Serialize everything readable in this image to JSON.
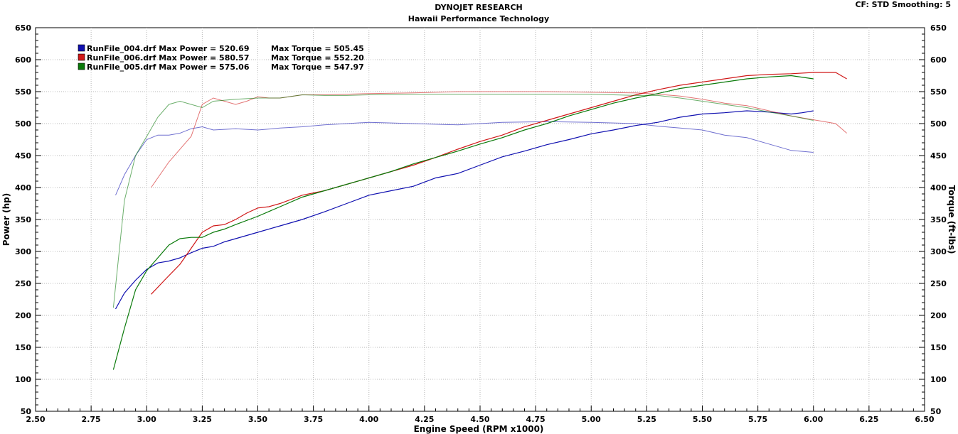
{
  "header": {
    "title": "DYNOJET RESEARCH",
    "subtitle": "Hawaii Performance Technology",
    "info": "CF: STD  Smoothing: 5"
  },
  "chart_data": {
    "type": "line",
    "title": "DYNOJET RESEARCH",
    "subtitle": "Hawaii Performance Technology",
    "xlabel": "Engine Speed (RPM x1000)",
    "ylabel": "Power (hp)",
    "y2label": "Torque (ft-lbs)",
    "xlim": [
      2.5,
      6.5
    ],
    "ylim": [
      50,
      650
    ],
    "y2lim": [
      50,
      650
    ],
    "x_ticks": [
      "2.50",
      "2.75",
      "3.00",
      "3.25",
      "3.50",
      "3.75",
      "4.00",
      "4.25",
      "4.50",
      "4.75",
      "5.00",
      "5.25",
      "5.50",
      "5.75",
      "6.00",
      "6.25",
      "6.50"
    ],
    "y_ticks": [
      "50",
      "100",
      "150",
      "200",
      "250",
      "300",
      "350",
      "400",
      "450",
      "500",
      "550",
      "600",
      "650"
    ],
    "grid": true,
    "legend_position": "top-left",
    "colors": {
      "RunFile_004.drf": "#1010b0",
      "RunFile_006.drf": "#d01818",
      "RunFile_005.drf": "#0a7a0a"
    },
    "legend": [
      {
        "name": "RunFile_004.drf",
        "text": "RunFile_004.drf Max Power = 520.69",
        "torque_text": "Max Torque = 505.45",
        "color": "#1010b0"
      },
      {
        "name": "RunFile_006.drf",
        "text": "RunFile_006.drf Max Power = 580.57",
        "torque_text": "Max Torque = 552.20",
        "color": "#d01818"
      },
      {
        "name": "RunFile_005.drf",
        "text": "RunFile_005.drf Max Power = 575.06",
        "torque_text": "Max Torque = 547.97",
        "color": "#0a7a0a"
      }
    ],
    "series": [
      {
        "name": "RunFile_004.drf",
        "kind": "power",
        "color": "#1010b0",
        "points": [
          [
            2.86,
            210
          ],
          [
            2.9,
            235
          ],
          [
            2.95,
            255
          ],
          [
            3.0,
            272
          ],
          [
            3.05,
            282
          ],
          [
            3.1,
            285
          ],
          [
            3.15,
            290
          ],
          [
            3.2,
            298
          ],
          [
            3.25,
            305
          ],
          [
            3.3,
            308
          ],
          [
            3.35,
            315
          ],
          [
            3.4,
            320
          ],
          [
            3.5,
            330
          ],
          [
            3.6,
            340
          ],
          [
            3.7,
            350
          ],
          [
            3.8,
            362
          ],
          [
            3.9,
            375
          ],
          [
            4.0,
            388
          ],
          [
            4.1,
            395
          ],
          [
            4.2,
            402
          ],
          [
            4.3,
            415
          ],
          [
            4.4,
            422
          ],
          [
            4.5,
            435
          ],
          [
            4.6,
            448
          ],
          [
            4.7,
            457
          ],
          [
            4.8,
            467
          ],
          [
            4.9,
            475
          ],
          [
            5.0,
            484
          ],
          [
            5.1,
            490
          ],
          [
            5.2,
            497
          ],
          [
            5.3,
            502
          ],
          [
            5.4,
            510
          ],
          [
            5.5,
            515
          ],
          [
            5.6,
            517
          ],
          [
            5.7,
            520
          ],
          [
            5.8,
            518
          ],
          [
            5.9,
            515
          ],
          [
            5.95,
            517
          ],
          [
            6.0,
            520
          ]
        ]
      },
      {
        "name": "RunFile_004.drf",
        "kind": "torque",
        "color": "#1010b0",
        "points": [
          [
            2.86,
            388
          ],
          [
            2.9,
            420
          ],
          [
            2.95,
            450
          ],
          [
            3.0,
            475
          ],
          [
            3.05,
            482
          ],
          [
            3.1,
            482
          ],
          [
            3.15,
            485
          ],
          [
            3.2,
            492
          ],
          [
            3.25,
            495
          ],
          [
            3.3,
            490
          ],
          [
            3.4,
            492
          ],
          [
            3.5,
            490
          ],
          [
            3.6,
            493
          ],
          [
            3.7,
            495
          ],
          [
            3.8,
            498
          ],
          [
            3.9,
            500
          ],
          [
            4.0,
            502
          ],
          [
            4.2,
            500
          ],
          [
            4.4,
            498
          ],
          [
            4.6,
            502
          ],
          [
            4.8,
            503
          ],
          [
            5.0,
            502
          ],
          [
            5.2,
            500
          ],
          [
            5.3,
            496
          ],
          [
            5.4,
            493
          ],
          [
            5.5,
            490
          ],
          [
            5.6,
            482
          ],
          [
            5.7,
            478
          ],
          [
            5.8,
            468
          ],
          [
            5.9,
            458
          ],
          [
            6.0,
            455
          ]
        ]
      },
      {
        "name": "RunFile_006.drf",
        "kind": "power",
        "color": "#d01818",
        "points": [
          [
            3.02,
            233
          ],
          [
            3.08,
            255
          ],
          [
            3.15,
            280
          ],
          [
            3.2,
            305
          ],
          [
            3.25,
            330
          ],
          [
            3.3,
            340
          ],
          [
            3.35,
            342
          ],
          [
            3.4,
            350
          ],
          [
            3.45,
            360
          ],
          [
            3.5,
            368
          ],
          [
            3.55,
            370
          ],
          [
            3.6,
            375
          ],
          [
            3.7,
            388
          ],
          [
            3.8,
            395
          ],
          [
            3.9,
            405
          ],
          [
            4.0,
            415
          ],
          [
            4.1,
            425
          ],
          [
            4.2,
            435
          ],
          [
            4.3,
            447
          ],
          [
            4.4,
            460
          ],
          [
            4.5,
            472
          ],
          [
            4.6,
            482
          ],
          [
            4.7,
            495
          ],
          [
            4.8,
            505
          ],
          [
            4.9,
            515
          ],
          [
            5.0,
            525
          ],
          [
            5.1,
            535
          ],
          [
            5.2,
            545
          ],
          [
            5.3,
            553
          ],
          [
            5.4,
            560
          ],
          [
            5.5,
            565
          ],
          [
            5.6,
            570
          ],
          [
            5.7,
            575
          ],
          [
            5.8,
            577
          ],
          [
            5.9,
            578
          ],
          [
            6.0,
            580
          ],
          [
            6.1,
            580
          ],
          [
            6.15,
            570
          ]
        ]
      },
      {
        "name": "RunFile_006.drf",
        "kind": "torque",
        "color": "#d01818",
        "points": [
          [
            3.02,
            400
          ],
          [
            3.1,
            440
          ],
          [
            3.2,
            480
          ],
          [
            3.25,
            530
          ],
          [
            3.3,
            540
          ],
          [
            3.35,
            535
          ],
          [
            3.4,
            530
          ],
          [
            3.45,
            535
          ],
          [
            3.5,
            542
          ],
          [
            3.55,
            540
          ],
          [
            3.6,
            540
          ],
          [
            3.7,
            545
          ],
          [
            3.8,
            545
          ],
          [
            3.9,
            546
          ],
          [
            4.0,
            547
          ],
          [
            4.2,
            548
          ],
          [
            4.4,
            550
          ],
          [
            4.6,
            550
          ],
          [
            4.8,
            550
          ],
          [
            5.0,
            549
          ],
          [
            5.2,
            548
          ],
          [
            5.3,
            546
          ],
          [
            5.4,
            543
          ],
          [
            5.5,
            538
          ],
          [
            5.6,
            532
          ],
          [
            5.7,
            528
          ],
          [
            5.8,
            520
          ],
          [
            5.9,
            512
          ],
          [
            6.0,
            506
          ],
          [
            6.1,
            500
          ],
          [
            6.15,
            485
          ]
        ]
      },
      {
        "name": "RunFile_005.drf",
        "kind": "power",
        "color": "#0a7a0a",
        "points": [
          [
            2.85,
            115
          ],
          [
            2.9,
            180
          ],
          [
            2.95,
            240
          ],
          [
            3.0,
            270
          ],
          [
            3.05,
            290
          ],
          [
            3.1,
            310
          ],
          [
            3.15,
            320
          ],
          [
            3.2,
            322
          ],
          [
            3.25,
            322
          ],
          [
            3.3,
            330
          ],
          [
            3.35,
            335
          ],
          [
            3.4,
            342
          ],
          [
            3.5,
            355
          ],
          [
            3.6,
            370
          ],
          [
            3.7,
            385
          ],
          [
            3.8,
            395
          ],
          [
            3.9,
            405
          ],
          [
            4.0,
            415
          ],
          [
            4.1,
            425
          ],
          [
            4.2,
            437
          ],
          [
            4.3,
            447
          ],
          [
            4.4,
            457
          ],
          [
            4.5,
            468
          ],
          [
            4.6,
            478
          ],
          [
            4.7,
            490
          ],
          [
            4.8,
            500
          ],
          [
            4.9,
            512
          ],
          [
            5.0,
            522
          ],
          [
            5.1,
            532
          ],
          [
            5.2,
            540
          ],
          [
            5.3,
            547
          ],
          [
            5.4,
            555
          ],
          [
            5.5,
            560
          ],
          [
            5.6,
            565
          ],
          [
            5.7,
            570
          ],
          [
            5.8,
            573
          ],
          [
            5.9,
            575
          ],
          [
            6.0,
            570
          ]
        ]
      },
      {
        "name": "RunFile_005.drf",
        "kind": "torque",
        "color": "#0a7a0a",
        "points": [
          [
            2.85,
            212
          ],
          [
            2.9,
            380
          ],
          [
            2.95,
            450
          ],
          [
            3.0,
            480
          ],
          [
            3.05,
            510
          ],
          [
            3.1,
            530
          ],
          [
            3.15,
            535
          ],
          [
            3.2,
            530
          ],
          [
            3.25,
            525
          ],
          [
            3.3,
            535
          ],
          [
            3.4,
            538
          ],
          [
            3.5,
            540
          ],
          [
            3.6,
            540
          ],
          [
            3.7,
            545
          ],
          [
            3.8,
            544
          ],
          [
            3.9,
            544
          ],
          [
            4.0,
            545
          ],
          [
            4.2,
            546
          ],
          [
            4.4,
            546
          ],
          [
            4.6,
            546
          ],
          [
            4.8,
            546
          ],
          [
            5.0,
            546
          ],
          [
            5.2,
            544
          ],
          [
            5.3,
            544
          ],
          [
            5.4,
            540
          ],
          [
            5.5,
            535
          ],
          [
            5.6,
            530
          ],
          [
            5.7,
            525
          ],
          [
            5.8,
            518
          ],
          [
            5.9,
            512
          ],
          [
            6.0,
            505
          ]
        ]
      }
    ]
  }
}
